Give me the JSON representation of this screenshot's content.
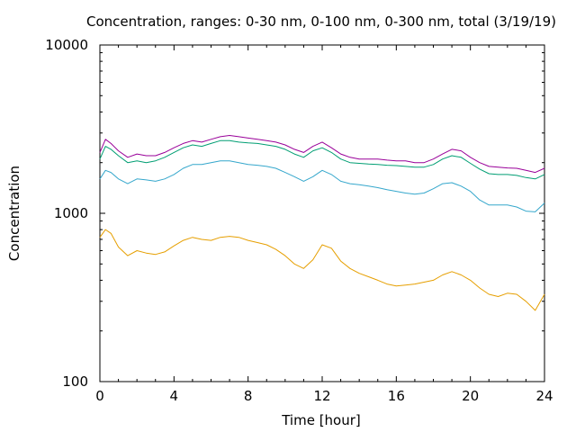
{
  "chart_data": {
    "type": "line",
    "title": "Concentration, ranges: 0-30 nm, 0-100 nm, 0-300 nm, total (3/19/19)",
    "xlabel": "Time [hour]",
    "ylabel": "Concentration",
    "xlim": [
      0,
      24
    ],
    "ylim": [
      100,
      10000
    ],
    "y_scale": "log",
    "grid": false,
    "x_ticks": [
      0,
      4,
      8,
      12,
      16,
      20,
      24
    ],
    "x_tick_labels": [
      "0",
      "4",
      "8",
      "12",
      "16",
      "20",
      "24"
    ],
    "y_ticks": [
      100,
      1000,
      10000
    ],
    "y_tick_labels": [
      "100",
      "1000",
      "10000"
    ],
    "x": [
      0,
      0.3,
      0.6,
      1,
      1.5,
      2,
      2.5,
      3,
      3.5,
      4,
      4.5,
      5,
      5.5,
      6,
      6.5,
      7,
      7.5,
      8,
      8.5,
      9,
      9.5,
      10,
      10.5,
      11,
      11.5,
      12,
      12.5,
      13,
      13.5,
      14,
      14.5,
      15,
      15.5,
      16,
      16.5,
      17,
      17.5,
      18,
      18.5,
      19,
      19.5,
      20,
      20.5,
      21,
      21.5,
      22,
      22.5,
      23,
      23.5,
      24
    ],
    "series": [
      {
        "color": "#990099",
        "values": [
          2300,
          2750,
          2600,
          2350,
          2150,
          2250,
          2200,
          2200,
          2300,
          2450,
          2600,
          2700,
          2650,
          2750,
          2850,
          2900,
          2850,
          2800,
          2750,
          2700,
          2650,
          2550,
          2400,
          2300,
          2500,
          2650,
          2450,
          2250,
          2150,
          2100,
          2100,
          2100,
          2070,
          2050,
          2050,
          2000,
          2000,
          2100,
          2250,
          2400,
          2350,
          2150,
          2000,
          1900,
          1880,
          1860,
          1850,
          1800,
          1750,
          1850
        ]
      },
      {
        "color": "#009e73",
        "values": [
          2100,
          2500,
          2400,
          2200,
          2000,
          2050,
          2000,
          2050,
          2150,
          2300,
          2450,
          2550,
          2500,
          2600,
          2700,
          2700,
          2650,
          2620,
          2600,
          2550,
          2500,
          2400,
          2250,
          2150,
          2350,
          2450,
          2300,
          2100,
          2000,
          1980,
          1960,
          1950,
          1930,
          1920,
          1900,
          1880,
          1880,
          1950,
          2100,
          2200,
          2150,
          1980,
          1830,
          1720,
          1700,
          1700,
          1680,
          1630,
          1600,
          1700
        ]
      },
      {
        "color": "#35a7cc",
        "values": [
          1600,
          1800,
          1750,
          1600,
          1500,
          1600,
          1580,
          1550,
          1600,
          1700,
          1850,
          1950,
          1950,
          2000,
          2050,
          2050,
          2000,
          1950,
          1930,
          1900,
          1850,
          1750,
          1650,
          1550,
          1650,
          1800,
          1700,
          1550,
          1500,
          1480,
          1450,
          1420,
          1380,
          1350,
          1320,
          1300,
          1320,
          1400,
          1500,
          1520,
          1450,
          1350,
          1200,
          1120,
          1120,
          1120,
          1090,
          1030,
          1020,
          1150
        ]
      },
      {
        "color": "#e69f00",
        "values": [
          720,
          800,
          760,
          630,
          560,
          600,
          580,
          570,
          590,
          640,
          690,
          720,
          700,
          690,
          720,
          730,
          720,
          690,
          670,
          650,
          610,
          560,
          500,
          470,
          530,
          650,
          620,
          520,
          470,
          440,
          420,
          400,
          380,
          370,
          375,
          380,
          390,
          400,
          430,
          450,
          430,
          400,
          360,
          330,
          320,
          335,
          330,
          300,
          265,
          330
        ]
      }
    ]
  }
}
